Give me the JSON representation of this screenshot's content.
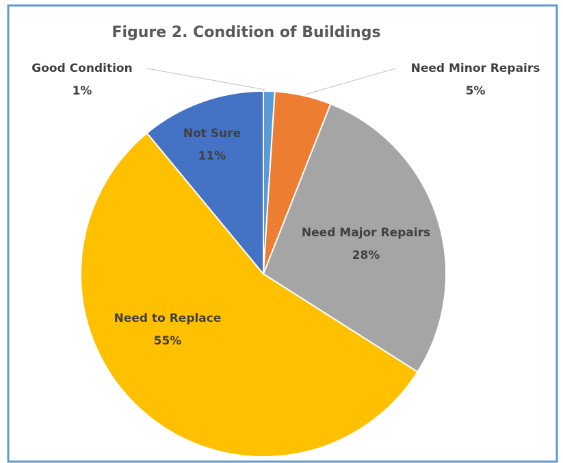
{
  "chart_data": {
    "type": "pie",
    "title": "Figure 2. Condition of Buildings",
    "categories": [
      "Good Condition",
      "Need Minor Repairs",
      "Need Major Repairs",
      "Need to Replace",
      "Not Sure"
    ],
    "values": [
      1,
      5,
      28,
      55,
      11
    ],
    "value_labels": [
      "1%",
      "5%",
      "28%",
      "55%",
      "11%"
    ],
    "colors": [
      "#5b9bd5",
      "#ed7d31",
      "#a5a5a5",
      "#ffc000",
      "#4472c4"
    ]
  }
}
